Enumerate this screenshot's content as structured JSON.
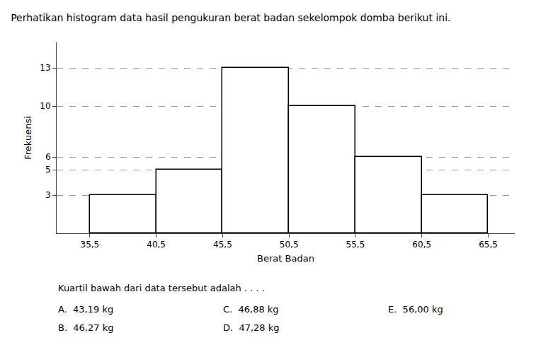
{
  "chart_data": {
    "type": "histogram",
    "title": "Perhatikan histogram data hasil pengukuran berat badan sekelompok domba berikut ini.",
    "subtitle": "Kuartil bawah dari data tersebut adalah . . . .",
    "annotations": [
      "A.  43,19 kg",
      "C.  46,88 kg",
      "E.  56,00 kg",
      "B.  46,27 kg",
      "D.  47,28 kg"
    ],
    "xlabel": "Berat Badan",
    "ylabel": "Frekuensi",
    "bins": [
      35.5,
      40.5,
      45.5,
      50.5,
      55.5,
      60.5,
      65.5
    ],
    "values": [
      3,
      5,
      13,
      10,
      6,
      3
    ],
    "color": "#ffffff",
    "xlim": [
      33.0,
      67.5
    ],
    "ylim": [
      0,
      15
    ],
    "xticks": [
      {
        "value": 35.5,
        "label": "35,5"
      },
      {
        "value": 40.5,
        "label": "40,5"
      },
      {
        "value": 45.5,
        "label": "45,5"
      },
      {
        "value": 50.5,
        "label": "50,5"
      },
      {
        "value": 55.5,
        "label": "55,5"
      },
      {
        "value": 60.5,
        "label": "60,5"
      },
      {
        "value": 65.5,
        "label": "65,5"
      }
    ],
    "yticks": [
      3,
      5,
      6,
      10,
      13
    ],
    "grid": "y"
  }
}
